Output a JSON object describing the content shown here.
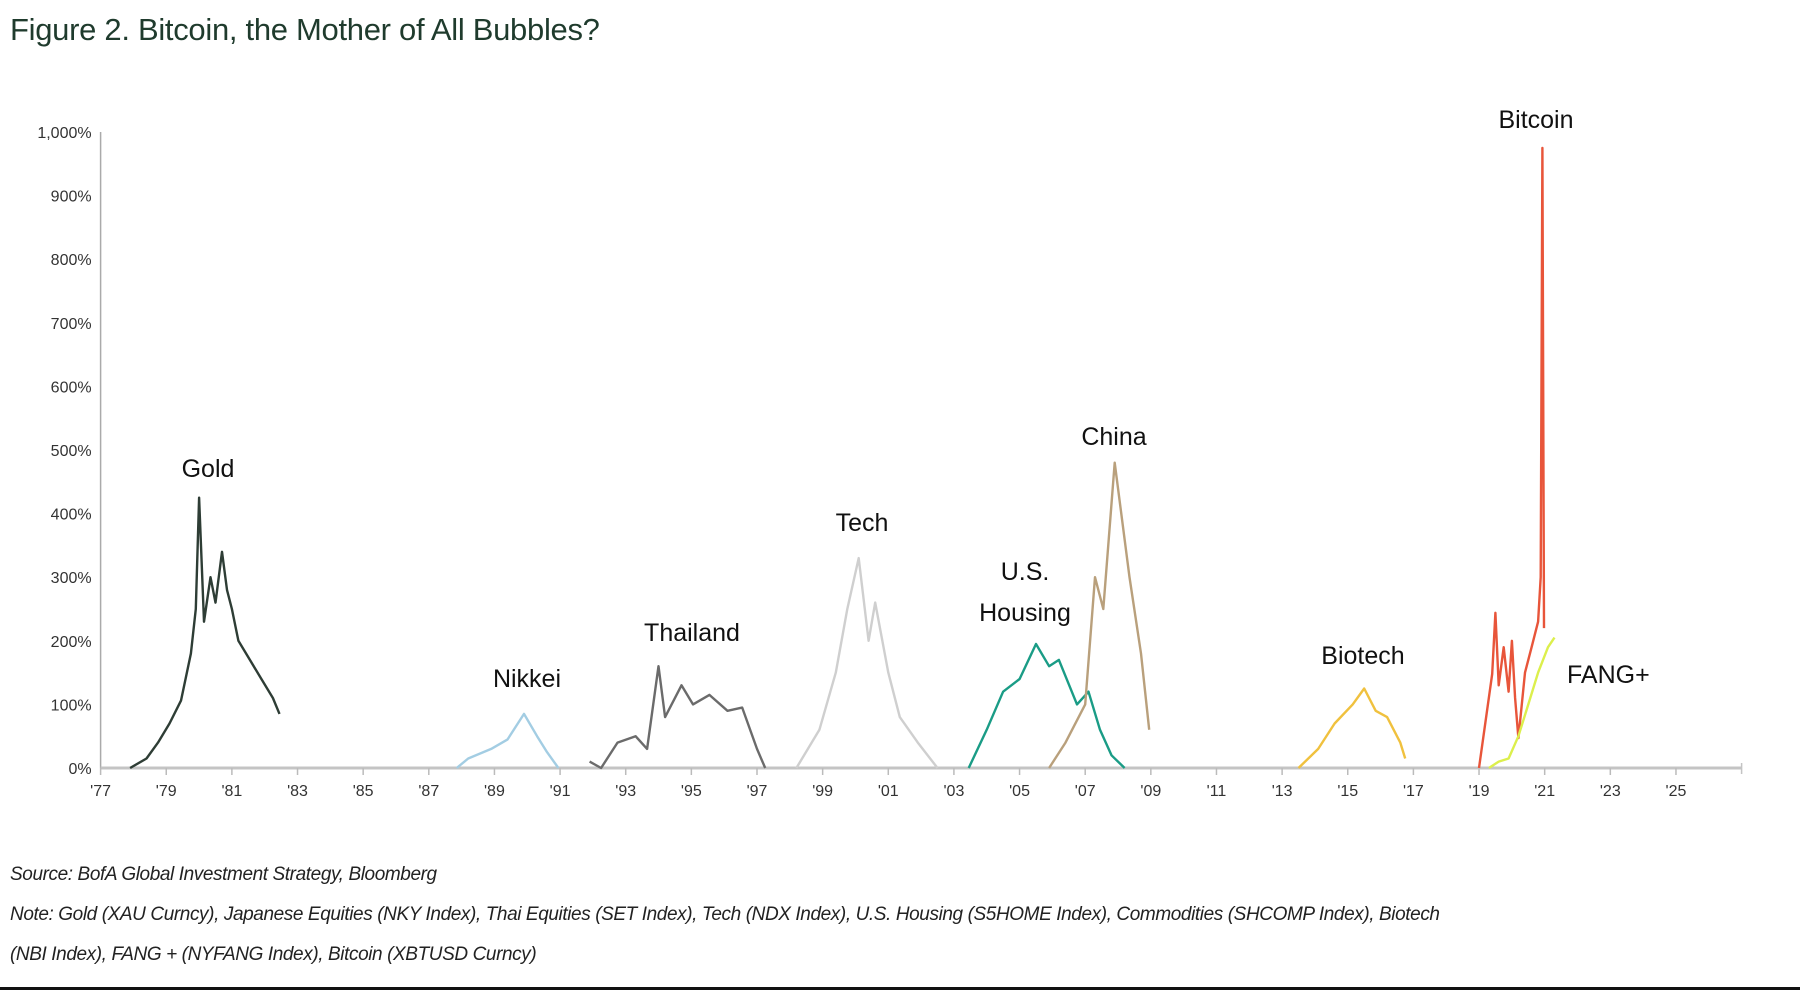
{
  "chart_data": {
    "type": "line",
    "title": "Figure 2. Bitcoin, the Mother of All Bubbles?",
    "xlabel": "",
    "ylabel": "",
    "xlim": [
      1977,
      2027
    ],
    "ylim": [
      0,
      1000
    ],
    "y_ticks": [
      "0%",
      "100%",
      "200%",
      "300%",
      "400%",
      "500%",
      "600%",
      "700%",
      "800%",
      "900%",
      "1,000%"
    ],
    "y_tick_values": [
      0,
      100,
      200,
      300,
      400,
      500,
      600,
      700,
      800,
      900,
      1000
    ],
    "x_ticks": [
      "'77",
      "'79",
      "'81",
      "'83",
      "'85",
      "'87",
      "'89",
      "'91",
      "'93",
      "'95",
      "'97",
      "'99",
      "'01",
      "'03",
      "'05",
      "'07",
      "'09",
      "'11",
      "'13",
      "'15",
      "'17",
      "'19",
      "'21",
      "'23",
      "'25"
    ],
    "x_tick_values": [
      1977,
      1979,
      1981,
      1983,
      1985,
      1987,
      1989,
      1991,
      1993,
      1995,
      1997,
      1999,
      2001,
      2003,
      2005,
      2007,
      2009,
      2011,
      2013,
      2015,
      2017,
      2019,
      2021,
      2023,
      2025
    ],
    "grid": false,
    "legend": "none (direct labels)",
    "series": [
      {
        "name": "Gold",
        "label": "Gold",
        "color": "#2e3d35",
        "x": [
          1977.9,
          1978.4,
          1978.75,
          1979.1,
          1979.45,
          1979.75,
          1979.9,
          1980.0,
          1980.15,
          1980.35,
          1980.5,
          1980.7,
          1980.85,
          1981.0,
          1981.2,
          1981.55,
          1981.9,
          1982.25,
          1982.45
        ],
        "y": [
          0,
          15,
          40,
          70,
          106,
          180,
          250,
          425,
          230,
          300,
          260,
          340,
          280,
          250,
          200,
          170,
          140,
          110,
          85
        ]
      },
      {
        "name": "Nikkei",
        "label": "Nikkei",
        "color": "#a3cde3",
        "x": [
          1987.85,
          1988.2,
          1988.9,
          1989.4,
          1989.9,
          1990.3,
          1990.6,
          1990.95
        ],
        "y": [
          0,
          15,
          30,
          45,
          85,
          50,
          25,
          0
        ]
      },
      {
        "name": "Thailand",
        "label": "Thailand",
        "color": "#6b6b6b",
        "x": [
          1991.9,
          1992.25,
          1992.75,
          1993.3,
          1993.65,
          1994.0,
          1994.2,
          1994.7,
          1995.05,
          1995.55,
          1996.1,
          1996.55,
          1997.0,
          1997.25
        ],
        "y": [
          10,
          0,
          40,
          50,
          30,
          160,
          80,
          130,
          100,
          115,
          90,
          95,
          30,
          0
        ]
      },
      {
        "name": "Tech",
        "label": "Tech",
        "color": "#cfcfcf",
        "x": [
          1998.2,
          1998.9,
          1999.4,
          1999.75,
          2000.1,
          2000.4,
          2000.6,
          2001.0,
          2001.35,
          2001.9,
          2002.5
        ],
        "y": [
          0,
          60,
          150,
          250,
          330,
          200,
          260,
          150,
          80,
          40,
          0
        ]
      },
      {
        "name": "U.S. Housing",
        "label": "U.S.|Housing",
        "color": "#1a9c86",
        "x": [
          2003.45,
          2004.0,
          2004.5,
          2005.0,
          2005.5,
          2005.9,
          2006.2,
          2006.75,
          2007.1,
          2007.45,
          2007.8,
          2008.2
        ],
        "y": [
          0,
          60,
          120,
          140,
          195,
          160,
          170,
          100,
          120,
          60,
          20,
          0
        ]
      },
      {
        "name": "China",
        "label": "China",
        "color": "#b9a07c",
        "x": [
          2005.9,
          2006.4,
          2007.0,
          2007.3,
          2007.55,
          2007.9,
          2008.35,
          2008.7,
          2008.95
        ],
        "y": [
          0,
          40,
          100,
          300,
          250,
          480,
          300,
          180,
          60
        ]
      },
      {
        "name": "Biotech",
        "label": "Biotech",
        "color": "#f0c13e",
        "x": [
          2013.5,
          2014.1,
          2014.6,
          2015.15,
          2015.5,
          2015.85,
          2016.2,
          2016.6,
          2016.75
        ],
        "y": [
          0,
          30,
          70,
          100,
          125,
          90,
          80,
          40,
          15
        ]
      },
      {
        "name": "Bitcoin",
        "label": "Bitcoin",
        "color": "#e8553a",
        "x": [
          2019.0,
          2019.4,
          2019.5,
          2019.6,
          2019.75,
          2019.9,
          2020.0,
          2020.1,
          2020.2,
          2020.4,
          2020.6,
          2020.8,
          2020.88,
          2020.93,
          2020.98
        ],
        "y": [
          0,
          148,
          244,
          130,
          190,
          120,
          200,
          110,
          47,
          150,
          190,
          230,
          300,
          975,
          220
        ]
      },
      {
        "name": "FANG+",
        "label": "FANG+",
        "color": "#dcef4c",
        "x": [
          2019.3,
          2019.6,
          2019.9,
          2020.2,
          2020.5,
          2020.8,
          2021.1,
          2021.3
        ],
        "y": [
          0,
          10,
          15,
          50,
          100,
          150,
          190,
          205
        ]
      }
    ]
  },
  "footer": {
    "source": "Source: BofA Global Investment Strategy, Bloomberg",
    "note_line1": "Note: Gold (XAU Curncy), Japanese Equities (NKY Index), Thai Equities (SET Index), Tech (NDX Index), U.S. Housing (S5HOME Index), Commodities (SHCOMP Index), Biotech",
    "note_line2": "(NBI Index), FANG + (NYFANG Index), Bitcoin (XBTUSD Curncy)"
  }
}
